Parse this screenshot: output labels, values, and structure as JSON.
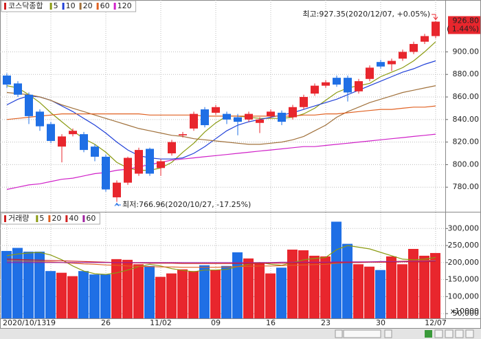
{
  "chart_data": [
    {
      "type": "candlestick",
      "title": "코스닥종합",
      "categories": [
        "2020/10/13",
        null,
        null,
        null,
        "19",
        null,
        null,
        null,
        null,
        "26",
        null,
        null,
        null,
        null,
        "11/02",
        null,
        null,
        null,
        null,
        "09",
        null,
        null,
        null,
        null,
        "16",
        null,
        null,
        null,
        null,
        "23",
        null,
        null,
        null,
        null,
        "30",
        null,
        null,
        null,
        null,
        "12/07"
      ],
      "open": [
        879,
        872,
        862,
        847,
        836,
        816,
        827,
        827,
        816,
        807,
        771,
        784,
        792,
        814,
        797,
        810,
        826,
        832,
        849,
        846,
        845,
        842,
        840,
        837,
        843,
        846,
        842,
        851,
        863,
        870,
        877,
        877,
        865,
        876,
        891,
        889,
        894,
        900,
        909,
        914
      ],
      "high": [
        881,
        874,
        864,
        849,
        838,
        827,
        832,
        829,
        818,
        809,
        786,
        807,
        815,
        815,
        805,
        822,
        829,
        847,
        851,
        853,
        847,
        845,
        847,
        842,
        849,
        848,
        853,
        862,
        872,
        875,
        879,
        879,
        876,
        888,
        893,
        894,
        902,
        909,
        916,
        927.35
      ],
      "low": [
        868,
        860,
        836,
        830,
        819,
        802,
        825,
        811,
        803,
        776,
        766.96,
        782,
        790,
        790,
        790,
        808,
        824,
        830,
        833,
        844,
        836,
        826,
        838,
        828,
        841,
        835,
        840,
        849,
        861,
        868,
        869,
        856,
        863,
        874,
        885,
        883,
        892,
        898,
        907,
        912
      ],
      "close": [
        871,
        862,
        843,
        834,
        821,
        825,
        830,
        813,
        807,
        778,
        784,
        806,
        813,
        792,
        803,
        820,
        827,
        845,
        835,
        851,
        840,
        838,
        845,
        840,
        847,
        838,
        851,
        860,
        870,
        873,
        871,
        864,
        874,
        886,
        887,
        892,
        900,
        907,
        914,
        926.8
      ],
      "up_color": "#e8262d",
      "down_color": "#1f6fe5",
      "series": [
        {
          "name": "5",
          "color": "#8a9a10",
          "values": [
            870,
            868,
            862,
            855,
            846,
            838,
            830,
            823,
            818,
            811,
            802,
            797,
            795,
            795,
            797,
            802,
            811,
            819,
            829,
            837,
            843,
            843,
            842,
            841,
            841,
            841,
            842,
            845,
            850,
            857,
            864,
            868,
            870,
            872,
            878,
            882,
            886,
            892,
            900,
            909
          ]
        },
        {
          "name": "10",
          "color": "#2040d8",
          "values": [
            853,
            858,
            861,
            860,
            857,
            852,
            847,
            841,
            835,
            828,
            820,
            813,
            808,
            806,
            805,
            805,
            806,
            810,
            816,
            823,
            830,
            835,
            838,
            840,
            842,
            844,
            846,
            849,
            852,
            855,
            858,
            862,
            866,
            870,
            874,
            878,
            882,
            885,
            889,
            892
          ]
        },
        {
          "name": "20",
          "color": "#a0703a",
          "values": [
            864,
            863,
            862,
            860,
            857,
            853,
            850,
            847,
            844,
            841,
            838,
            835,
            832,
            830,
            828,
            826,
            825,
            823,
            822,
            821,
            820,
            819,
            818,
            818,
            819,
            820,
            822,
            825,
            830,
            835,
            842,
            847,
            851,
            855,
            858,
            861,
            864,
            866,
            868,
            870
          ]
        },
        {
          "name": "60",
          "color": "#e06020",
          "values": [
            840,
            841,
            842,
            843,
            844,
            845,
            845,
            845,
            845,
            845,
            845,
            845,
            845,
            844,
            844,
            844,
            844,
            844,
            843,
            843,
            843,
            843,
            843,
            843,
            843,
            843,
            843,
            844,
            844,
            845,
            845,
            846,
            847,
            848,
            849,
            849,
            850,
            851,
            851,
            852
          ]
        },
        {
          "name": "120",
          "color": "#d020c8",
          "values": [
            778,
            780,
            782,
            783,
            785,
            787,
            788,
            790,
            792,
            793,
            795,
            796,
            798,
            800,
            802,
            804,
            805,
            806,
            807,
            808,
            809,
            810,
            811,
            812,
            813,
            814,
            815,
            816,
            816,
            817,
            818,
            819,
            820,
            821,
            822,
            823,
            824,
            825,
            826,
            827
          ]
        }
      ],
      "ylim": [
        760,
        946
      ],
      "yticks": [
        {
          "value": 780,
          "label": "780.00"
        },
        {
          "value": 800,
          "label": "800.00"
        },
        {
          "value": 820,
          "label": "820.00"
        },
        {
          "value": 840,
          "label": "840.00"
        },
        {
          "value": 860,
          "label": "860.00"
        },
        {
          "value": 880,
          "label": "880.00"
        },
        {
          "value": 900,
          "label": "900.00"
        }
      ],
      "grid": true,
      "annotations": {
        "high": "최고:927.35(2020/12/07, +0.05%)",
        "low": "최저:766.96(2020/10/27, -17.25%)"
      },
      "last_value_label": "926.80",
      "last_change_label": "( 1.44%)"
    },
    {
      "type": "bar",
      "title": "거래량",
      "values": [
        234000,
        243000,
        232000,
        232000,
        175000,
        170000,
        160000,
        175000,
        165000,
        165000,
        210000,
        208000,
        195000,
        190000,
        158000,
        168000,
        180000,
        175000,
        192000,
        178000,
        190000,
        230000,
        212000,
        200000,
        168000,
        185000,
        238000,
        236000,
        220000,
        218000,
        320000,
        255000,
        195000,
        188000,
        178000,
        218000,
        195000,
        240000,
        220000,
        228000
      ],
      "series": [
        {
          "name": "5",
          "color": "#8a9a10",
          "values": [
            220000,
            225000,
            228000,
            230000,
            222000,
            208000,
            190000,
            175000,
            167000,
            165000,
            170000,
            178000,
            188000,
            195000,
            190000,
            182000,
            177000,
            173000,
            178000,
            178000,
            180000,
            188000,
            195000,
            200000,
            195000,
            192000,
            200000,
            208000,
            212000,
            215000,
            238000,
            250000,
            245000,
            240000,
            230000,
            220000,
            210000,
            208000,
            210000,
            215000
          ]
        },
        {
          "name": "20",
          "color": "#e06020",
          "values": [
            205000,
            205000,
            204000,
            203000,
            202000,
            200000,
            198000,
            196000,
            195000,
            193000,
            192000,
            190000,
            189000,
            188000,
            187000,
            187000,
            186000,
            186000,
            186000,
            186000,
            187000,
            188000,
            189000,
            190000,
            190000,
            191000,
            192000,
            193000,
            194000,
            195000,
            198000,
            200000,
            201000,
            202000,
            202000,
            203000,
            204000,
            205000,
            206000,
            207000
          ]
        },
        {
          "name": "40",
          "color": "#d02020",
          "values": [
            210000,
            209000,
            208000,
            207000,
            206000,
            205000,
            204000,
            203000,
            202000,
            201000,
            200000,
            199000,
            199000,
            198000,
            198000,
            198000,
            197000,
            197000,
            197000,
            197000,
            197000,
            197000,
            197000,
            197000,
            198000,
            198000,
            198000,
            199000,
            199000,
            199000,
            200000,
            200000,
            200000,
            201000,
            201000,
            201000,
            202000,
            202000,
            202000,
            203000
          ]
        },
        {
          "name": "60",
          "color": "#a020a0",
          "values": [
            200000,
            200000,
            200000,
            200000,
            200000,
            200000,
            200000,
            200000,
            200000,
            200000,
            200000,
            200000,
            200000,
            200000,
            200000,
            200000,
            200000,
            200000,
            200000,
            200000,
            200000,
            200000,
            200000,
            200000,
            200000,
            201000,
            201000,
            201000,
            201000,
            201000,
            202000,
            202000,
            202000,
            202000,
            203000,
            203000,
            203000,
            204000,
            204000,
            205000
          ]
        }
      ],
      "ylim": [
        36000,
        341000
      ],
      "yticks": [
        {
          "value": 50000,
          "label": "50,000"
        },
        {
          "value": 100000,
          "label": "100,000"
        },
        {
          "value": 150000,
          "label": "150,000"
        },
        {
          "value": 200000,
          "label": "200,000"
        },
        {
          "value": 250000,
          "label": "250,000"
        },
        {
          "value": 300000,
          "label": "300,000"
        }
      ],
      "grid": true,
      "unit_label": "x10000"
    }
  ]
}
